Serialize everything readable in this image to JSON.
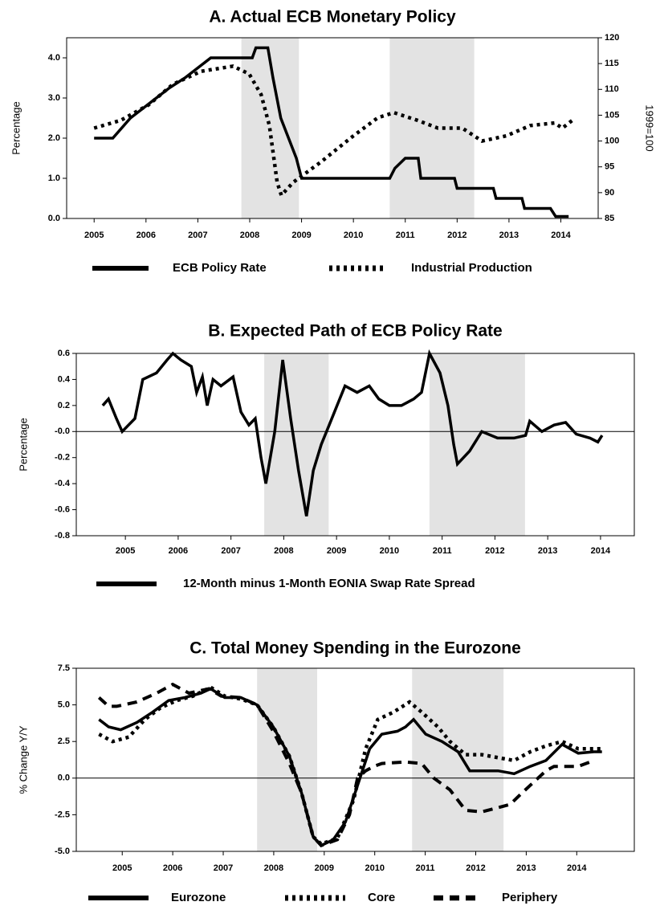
{
  "chart_data": [
    {
      "type": "line",
      "title": "A. Actual ECB Monetary Policy",
      "ylabel": "Percentage",
      "y2label": "1999=100",
      "xlim": [
        2004.97,
        2015.22
      ],
      "ylim": [
        0,
        4.5
      ],
      "y2lim": [
        85,
        120
      ],
      "xticks": [
        {
          "value": 2005.5,
          "label": "2005"
        },
        {
          "value": 2006.5,
          "label": "2006"
        },
        {
          "value": 2007.5,
          "label": "2007"
        },
        {
          "value": 2008.5,
          "label": "2008"
        },
        {
          "value": 2009.5,
          "label": "2009"
        },
        {
          "value": 2010.5,
          "label": "2010"
        },
        {
          "value": 2011.5,
          "label": "2011"
        },
        {
          "value": 2012.5,
          "label": "2012"
        },
        {
          "value": 2013.5,
          "label": "2013"
        },
        {
          "value": 2014.5,
          "label": "2014"
        }
      ],
      "yticks": [
        {
          "value": 0,
          "label": "0.0"
        },
        {
          "value": 1,
          "label": "1.0"
        },
        {
          "value": 2,
          "label": "2.0"
        },
        {
          "value": 3,
          "label": "3.0"
        },
        {
          "value": 4,
          "label": "4.0"
        }
      ],
      "y2ticks": [
        85,
        90,
        95,
        100,
        105,
        110,
        115,
        120
      ],
      "shaded": [
        [
          2008.34,
          2009.45
        ],
        [
          2011.2,
          2012.83
        ]
      ],
      "zero_line": false,
      "series": [
        {
          "name": "ECB Policy Rate",
          "color": "#000000",
          "style": "solid",
          "x": [
            2005.5,
            2005.86,
            2006.2,
            2006.45,
            2006.7,
            2006.95,
            2007.25,
            2007.5,
            2007.75,
            2008.55,
            2008.62,
            2008.85,
            2008.95,
            2009.1,
            2009.25,
            2009.4,
            2009.5,
            2011.2,
            2011.3,
            2011.5,
            2011.75,
            2011.8,
            2012.45,
            2012.5,
            2013.2,
            2013.25,
            2013.75,
            2013.8,
            2014.3,
            2014.4,
            2014.65
          ],
          "values": [
            2.0,
            2.0,
            2.5,
            2.75,
            3.0,
            3.25,
            3.5,
            3.75,
            4.0,
            4.0,
            4.25,
            4.25,
            3.5,
            2.5,
            2.0,
            1.5,
            1.0,
            1.0,
            1.25,
            1.5,
            1.5,
            1.0,
            1.0,
            0.75,
            0.75,
            0.5,
            0.5,
            0.25,
            0.25,
            0.05,
            0.05
          ]
        },
        {
          "name": "Industrial Production",
          "color": "#000000",
          "style": "dotted",
          "axis": "y2",
          "x": [
            2005.5,
            2006.01,
            2006.55,
            2007.02,
            2007.56,
            2008.18,
            2008.49,
            2008.72,
            2008.88,
            2009.03,
            2009.11,
            2009.34,
            2009.88,
            2010.5,
            2010.97,
            2011.28,
            2011.74,
            2012.13,
            2012.6,
            2012.98,
            2013.45,
            2013.91,
            2014.38,
            2014.53,
            2014.72
          ],
          "values": [
            102.5,
            104,
            107,
            111,
            113.5,
            114.5,
            113,
            109,
            103,
            92,
            89.5,
            92,
            96,
            101,
            104.5,
            105.5,
            104,
            102.5,
            102.5,
            100,
            101,
            103,
            103.5,
            102.5,
            104
          ]
        }
      ]
    },
    {
      "type": "line",
      "title": "B. Expected Path of ECB Policy Rate",
      "ylabel": "Percentage",
      "xlim": [
        2004.57,
        2015.14
      ],
      "ylim": [
        -0.8,
        0.6
      ],
      "xticks": [
        {
          "value": 2005.5,
          "label": "2005"
        },
        {
          "value": 2006.5,
          "label": "2006"
        },
        {
          "value": 2007.5,
          "label": "2007"
        },
        {
          "value": 2008.5,
          "label": "2008"
        },
        {
          "value": 2009.5,
          "label": "2009"
        },
        {
          "value": 2010.5,
          "label": "2010"
        },
        {
          "value": 2011.5,
          "label": "2011"
        },
        {
          "value": 2012.5,
          "label": "2012"
        },
        {
          "value": 2013.5,
          "label": "2013"
        },
        {
          "value": 2014.5,
          "label": "2014"
        }
      ],
      "yticks": [
        -0.8,
        -0.6,
        -0.4,
        -0.2,
        {
          "value": 0,
          "label": "-0.0"
        },
        0.2,
        0.4,
        0.6
      ],
      "shaded": [
        [
          2008.13,
          2009.35
        ],
        [
          2011.26,
          2013.07
        ]
      ],
      "zero_line": true,
      "series": [
        {
          "name": "12-Month minus 1-Month EONIA Swap Rate Spread",
          "color": "#000000",
          "style": "solid",
          "x": [
            2005.07,
            2005.18,
            2005.33,
            2005.44,
            2005.56,
            2005.68,
            2005.83,
            2006.09,
            2006.29,
            2006.4,
            2006.55,
            2006.75,
            2006.85,
            2006.96,
            2007.05,
            2007.16,
            2007.31,
            2007.54,
            2007.69,
            2007.84,
            2007.96,
            2008.07,
            2008.16,
            2008.33,
            2008.48,
            2008.63,
            2008.78,
            2008.93,
            2009.06,
            2009.21,
            2009.36,
            2009.51,
            2009.66,
            2009.89,
            2010.12,
            2010.3,
            2010.5,
            2010.73,
            2010.96,
            2011.11,
            2011.26,
            2011.46,
            2011.61,
            2011.72,
            2011.79,
            2012.02,
            2012.25,
            2012.55,
            2012.86,
            2013.08,
            2013.16,
            2013.39,
            2013.62,
            2013.84,
            2014.04,
            2014.3,
            2014.45,
            2014.53
          ],
          "values": [
            0.2,
            0.25,
            0.1,
            0.0,
            0.05,
            0.1,
            0.4,
            0.45,
            0.55,
            0.6,
            0.55,
            0.5,
            0.3,
            0.42,
            0.2,
            0.4,
            0.35,
            0.42,
            0.15,
            0.05,
            0.1,
            -0.2,
            -0.4,
            0.0,
            0.55,
            0.1,
            -0.3,
            -0.65,
            -0.3,
            -0.1,
            0.05,
            0.2,
            0.35,
            0.3,
            0.35,
            0.25,
            0.2,
            0.2,
            0.25,
            0.3,
            0.6,
            0.45,
            0.2,
            -0.1,
            -0.25,
            -0.15,
            0.0,
            -0.05,
            -0.05,
            -0.03,
            0.08,
            0.0,
            0.05,
            0.07,
            -0.02,
            -0.05,
            -0.08,
            -0.03
          ]
        }
      ]
    },
    {
      "type": "line",
      "title": "C. Total Money Spending in the Eurozone",
      "ylabel": "% Change Y/Y",
      "xlim": [
        2004.59,
        2015.64
      ],
      "ylim": [
        -5,
        7.5
      ],
      "xticks": [
        {
          "value": 2005.5,
          "label": "2005"
        },
        {
          "value": 2006.5,
          "label": "2006"
        },
        {
          "value": 2007.5,
          "label": "2007"
        },
        {
          "value": 2008.5,
          "label": "2008"
        },
        {
          "value": 2009.5,
          "label": "2009"
        },
        {
          "value": 2010.5,
          "label": "2010"
        },
        {
          "value": 2011.5,
          "label": "2011"
        },
        {
          "value": 2012.5,
          "label": "2012"
        },
        {
          "value": 2013.5,
          "label": "2013"
        },
        {
          "value": 2014.5,
          "label": "2014"
        }
      ],
      "yticks": [
        {
          "value": -5,
          "label": "-5.0"
        },
        -2.5,
        {
          "value": 0,
          "label": "0.0"
        },
        2.5,
        {
          "value": 5,
          "label": "5.0"
        },
        7.5
      ],
      "shaded": [
        [
          2008.17,
          2009.36
        ],
        [
          2011.24,
          2013.05
        ]
      ],
      "zero_line": true,
      "series": [
        {
          "name": "Eurozone",
          "color": "#000000",
          "style": "solid",
          "x": [
            2005.04,
            2005.23,
            2005.47,
            2005.79,
            2006.1,
            2006.42,
            2006.74,
            2007.06,
            2007.25,
            2007.53,
            2007.85,
            2008.17,
            2008.49,
            2008.81,
            2009.05,
            2009.28,
            2009.44,
            2009.68,
            2009.92,
            2010.16,
            2010.4,
            2010.64,
            2010.95,
            2011.11,
            2011.27,
            2011.51,
            2011.83,
            2012.15,
            2012.38,
            2012.62,
            2012.94,
            2013.26,
            2013.58,
            2013.89,
            2014.21,
            2014.53,
            2014.84,
            2015.0
          ],
          "values": [
            4.0,
            3.5,
            3.3,
            3.8,
            4.5,
            5.3,
            5.5,
            5.8,
            6.1,
            5.5,
            5.5,
            5.0,
            3.5,
            1.5,
            -1.0,
            -4.0,
            -4.6,
            -4.2,
            -3.0,
            -0.5,
            2.0,
            3.0,
            3.2,
            3.5,
            4.0,
            3.0,
            2.5,
            1.8,
            0.5,
            0.5,
            0.5,
            0.3,
            0.8,
            1.2,
            2.3,
            1.7,
            1.8,
            1.8
          ]
        },
        {
          "name": "Core",
          "color": "#000000",
          "style": "dotted",
          "x": [
            2005.04,
            2005.31,
            2005.63,
            2005.95,
            2006.26,
            2006.58,
            2006.9,
            2007.25,
            2007.53,
            2007.85,
            2008.17,
            2008.49,
            2008.81,
            2009.05,
            2009.28,
            2009.44,
            2009.76,
            2010.08,
            2010.32,
            2010.56,
            2010.87,
            2011.19,
            2011.43,
            2011.75,
            2011.99,
            2012.3,
            2012.62,
            2012.94,
            2013.26,
            2013.58,
            2013.89,
            2014.21,
            2014.53,
            2014.84,
            2015.0
          ],
          "values": [
            3.0,
            2.5,
            2.8,
            4.0,
            4.8,
            5.3,
            5.6,
            6.2,
            5.6,
            5.4,
            5.0,
            3.5,
            1.5,
            -1.0,
            -4.0,
            -4.5,
            -4.1,
            -1.5,
            2.0,
            4.0,
            4.5,
            5.2,
            4.5,
            3.5,
            2.5,
            1.6,
            1.6,
            1.4,
            1.2,
            1.8,
            2.2,
            2.5,
            2.0,
            2.0,
            2.0
          ]
        },
        {
          "name": "Periphery",
          "color": "#000000",
          "style": "dashed",
          "x": [
            2005.04,
            2005.23,
            2005.39,
            2005.79,
            2006.18,
            2006.5,
            2006.82,
            2007.22,
            2007.46,
            2007.85,
            2008.17,
            2008.49,
            2008.81,
            2009.05,
            2009.28,
            2009.44,
            2009.76,
            2010.0,
            2010.16,
            2010.32,
            2010.48,
            2010.64,
            2011.11,
            2011.43,
            2011.67,
            2011.99,
            2012.3,
            2012.62,
            2013.18,
            2013.42,
            2013.89,
            2014.05,
            2014.53,
            2014.84
          ],
          "values": [
            5.5,
            4.9,
            4.9,
            5.2,
            5.8,
            6.4,
            5.8,
            6.1,
            5.6,
            5.5,
            5.0,
            3.2,
            1.0,
            -1.0,
            -4.0,
            -4.6,
            -4.2,
            -2.5,
            0.0,
            0.5,
            0.8,
            1.0,
            1.1,
            1.0,
            0.0,
            -0.8,
            -2.2,
            -2.3,
            -1.8,
            -1.0,
            0.5,
            0.8,
            0.8,
            1.2
          ]
        }
      ]
    }
  ]
}
